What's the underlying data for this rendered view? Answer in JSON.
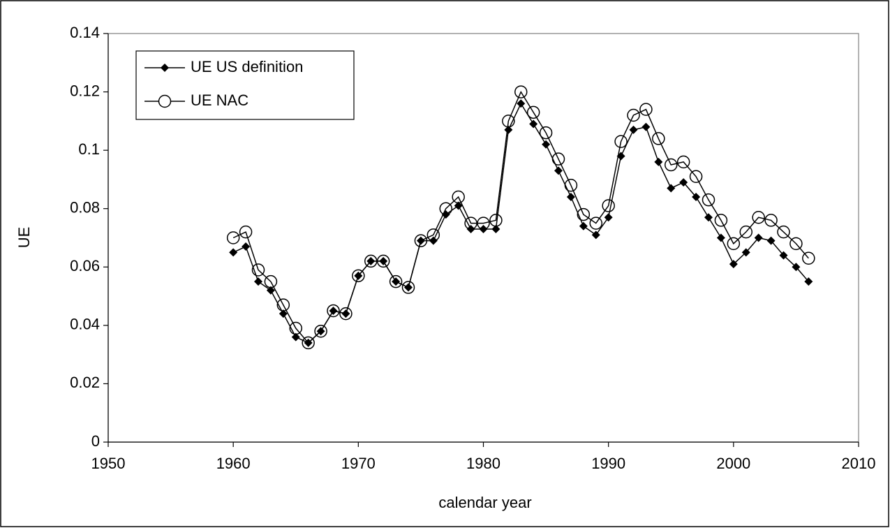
{
  "chart_data": {
    "type": "line",
    "x_label": "calendar year",
    "y_label": "UE",
    "x": [
      1960,
      1961,
      1962,
      1963,
      1964,
      1965,
      1966,
      1967,
      1968,
      1969,
      1970,
      1971,
      1972,
      1973,
      1974,
      1975,
      1976,
      1977,
      1978,
      1979,
      1980,
      1981,
      1982,
      1983,
      1984,
      1985,
      1986,
      1987,
      1988,
      1989,
      1990,
      1991,
      1992,
      1993,
      1994,
      1995,
      1996,
      1997,
      1998,
      1999,
      2000,
      2001,
      2002,
      2003,
      2004,
      2005,
      2006
    ],
    "series": [
      {
        "name": "UE US definition",
        "color": "#000000",
        "marker": "diamond",
        "values": [
          0.065,
          0.067,
          0.055,
          0.052,
          0.044,
          0.036,
          0.034,
          0.038,
          0.045,
          0.044,
          0.057,
          0.062,
          0.062,
          0.055,
          0.053,
          0.069,
          0.069,
          0.078,
          0.081,
          0.073,
          0.073,
          0.073,
          0.107,
          0.116,
          0.109,
          0.102,
          0.093,
          0.084,
          0.074,
          0.071,
          0.077,
          0.098,
          0.107,
          0.108,
          0.096,
          0.087,
          0.089,
          0.084,
          0.077,
          0.07,
          0.061,
          0.065,
          0.07,
          0.069,
          0.064,
          0.06,
          0.055
        ]
      },
      {
        "name": "UE NAC",
        "color": "#000000",
        "marker": "circle",
        "values": [
          0.07,
          0.072,
          0.059,
          0.055,
          0.047,
          0.039,
          0.034,
          0.038,
          0.045,
          0.044,
          0.057,
          0.062,
          0.062,
          0.055,
          0.053,
          0.069,
          0.071,
          0.08,
          0.084,
          0.075,
          0.075,
          0.076,
          0.11,
          0.12,
          0.113,
          0.106,
          0.097,
          0.088,
          0.078,
          0.075,
          0.081,
          0.103,
          0.112,
          0.114,
          0.104,
          0.095,
          0.096,
          0.091,
          0.083,
          0.076,
          0.068,
          0.072,
          0.077,
          0.076,
          0.072,
          0.068,
          0.063
        ]
      }
    ],
    "xlim": [
      1950,
      2010
    ],
    "xticks": [
      1950,
      1960,
      1970,
      1980,
      1990,
      2000,
      2010
    ],
    "ylim": [
      0,
      0.14
    ],
    "yticks": [
      0,
      0.02,
      0.04,
      0.06,
      0.08,
      0.1,
      0.12,
      0.14
    ],
    "grid": false,
    "legend": "top-left"
  }
}
